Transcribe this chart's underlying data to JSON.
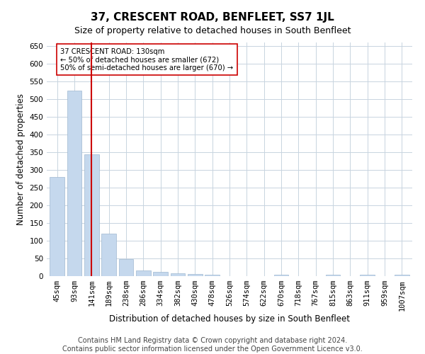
{
  "title": "37, CRESCENT ROAD, BENFLEET, SS7 1JL",
  "subtitle": "Size of property relative to detached houses in South Benfleet",
  "xlabel": "Distribution of detached houses by size in South Benfleet",
  "ylabel": "Number of detached properties",
  "categories": [
    "45sqm",
    "93sqm",
    "141sqm",
    "189sqm",
    "238sqm",
    "286sqm",
    "334sqm",
    "382sqm",
    "430sqm",
    "478sqm",
    "526sqm",
    "574sqm",
    "622sqm",
    "670sqm",
    "718sqm",
    "767sqm",
    "815sqm",
    "863sqm",
    "911sqm",
    "959sqm",
    "1007sqm"
  ],
  "values": [
    280,
    525,
    345,
    120,
    48,
    17,
    12,
    9,
    7,
    5,
    0,
    0,
    0,
    5,
    0,
    0,
    5,
    0,
    5,
    0,
    5
  ],
  "bar_color": "#c5d8ed",
  "bar_edge_color": "#a0b8d0",
  "vline_x": 2,
  "vline_color": "#cc0000",
  "annotation_text": "37 CRESCENT ROAD: 130sqm\n← 50% of detached houses are smaller (672)\n50% of semi-detached houses are larger (670) →",
  "annotation_box_color": "#ffffff",
  "annotation_box_edge": "#cc0000",
  "ylim": [
    0,
    660
  ],
  "yticks": [
    0,
    50,
    100,
    150,
    200,
    250,
    300,
    350,
    400,
    450,
    500,
    550,
    600,
    650
  ],
  "footer1": "Contains HM Land Registry data © Crown copyright and database right 2024.",
  "footer2": "Contains public sector information licensed under the Open Government Licence v3.0.",
  "bg_color": "#ffffff",
  "grid_color": "#c8d4e0",
  "title_fontsize": 11,
  "subtitle_fontsize": 9,
  "axis_label_fontsize": 8.5,
  "tick_fontsize": 7.5,
  "footer_fontsize": 7
}
